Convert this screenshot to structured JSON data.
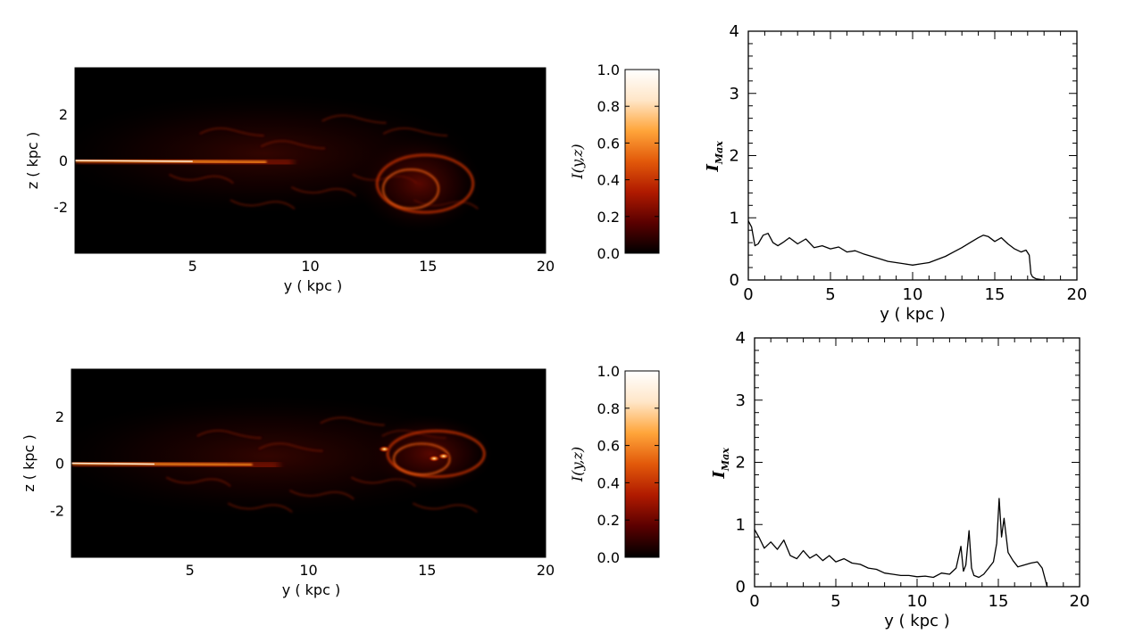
{
  "colors": {
    "background": "#ffffff",
    "axis": "#000000",
    "line": "#000000",
    "map_bg": "#000000"
  },
  "colorbar": {
    "colormap": "hot (black → dark red → orange → white)",
    "stops": [
      "#000000",
      "#5a0000",
      "#b01a00",
      "#e2590a",
      "#ffa53a",
      "#ffe6c8",
      "#ffffff"
    ],
    "ticks": [
      "0.0",
      "0.2",
      "0.4",
      "0.6",
      "0.8",
      "1.0"
    ],
    "label": "I(y,z)"
  },
  "chart_data": [
    {
      "type": "heatmap",
      "panel": "top-left",
      "xlabel": "y ( kpc )",
      "ylabel": "z ( kpc )",
      "xlim": [
        0,
        20
      ],
      "ylim": [
        -4,
        4
      ],
      "xticks": [
        "5",
        "10",
        "15",
        "20"
      ],
      "yticks": [
        "2",
        "0",
        "-2"
      ],
      "colorbar_label": "I(y,z)",
      "colorbar_range": [
        0,
        1
      ],
      "features": {
        "jet": {
          "y_start": 0,
          "y_end": 7,
          "z": 0.0,
          "intensity": 0.95,
          "peak_y": 3.5
        },
        "head": {
          "y_center": 14.5,
          "z_center": -1.0,
          "extent_y": [
            12,
            17.3
          ],
          "extent_z": [
            -3.2,
            1.0
          ]
        },
        "cocoon": {
          "y_range": [
            0,
            17
          ],
          "z_range": [
            -3,
            3
          ]
        }
      }
    },
    {
      "type": "line",
      "panel": "top-right",
      "xlabel": "y ( kpc )",
      "ylabel": "I_Max",
      "xlim": [
        0,
        20
      ],
      "ylim": [
        0,
        4
      ],
      "xticks": [
        "0",
        "5",
        "10",
        "15",
        "20"
      ],
      "yticks": [
        "0",
        "1",
        "2",
        "3",
        "4"
      ],
      "series": [
        {
          "x": [
            0,
            0.2,
            0.4,
            0.6,
            0.9,
            1.2,
            1.5,
            1.8,
            2.1,
            2.5,
            3.0,
            3.5,
            4.0,
            4.5,
            5.0,
            5.5,
            6.0,
            6.5,
            7.0,
            7.5,
            8.0,
            8.5,
            9.0,
            9.5,
            10.0,
            10.5,
            11.0,
            11.5,
            12.0,
            12.5,
            13.0,
            13.5,
            14.0,
            14.3,
            14.6,
            15.0,
            15.4,
            15.8,
            16.2,
            16.6,
            16.9,
            17.1,
            17.2,
            17.3,
            17.5,
            18.0
          ],
          "y": [
            0.95,
            0.85,
            0.55,
            0.58,
            0.72,
            0.75,
            0.6,
            0.55,
            0.6,
            0.68,
            0.58,
            0.66,
            0.52,
            0.55,
            0.5,
            0.53,
            0.45,
            0.47,
            0.42,
            0.38,
            0.34,
            0.3,
            0.28,
            0.26,
            0.24,
            0.26,
            0.28,
            0.33,
            0.38,
            0.45,
            0.52,
            0.6,
            0.68,
            0.72,
            0.7,
            0.62,
            0.68,
            0.58,
            0.5,
            0.45,
            0.48,
            0.4,
            0.1,
            0.05,
            0.02,
            0.0
          ]
        }
      ]
    },
    {
      "type": "heatmap",
      "panel": "bottom-left",
      "xlabel": "y ( kpc )",
      "ylabel": "z ( kpc )",
      "xlim": [
        0,
        20
      ],
      "ylim": [
        -4,
        4
      ],
      "xticks": [
        "5",
        "10",
        "15",
        "20"
      ],
      "yticks": [
        "2",
        "0",
        "-2"
      ],
      "colorbar_label": "I(y,z)",
      "colorbar_range": [
        0,
        1
      ],
      "features": {
        "jet": {
          "y_start": 0,
          "y_end": 6.5,
          "z": 0.0,
          "intensity": 0.95,
          "peak_y": 2.0
        },
        "head": {
          "y_center": 15.8,
          "z_center": 0.4,
          "extent_y": [
            12.5,
            17.8
          ],
          "extent_z": [
            -1.5,
            1.8
          ]
        },
        "hotspots": [
          {
            "y": 13.2,
            "z": 0.6
          },
          {
            "y": 15.3,
            "z": 0.2
          },
          {
            "y": 15.7,
            "z": 0.3
          }
        ]
      }
    },
    {
      "type": "line",
      "panel": "bottom-right",
      "xlabel": "y ( kpc )",
      "ylabel": "I_Max",
      "xlim": [
        0,
        20
      ],
      "ylim": [
        0,
        4
      ],
      "xticks": [
        "0",
        "5",
        "10",
        "15",
        "20"
      ],
      "yticks": [
        "0",
        "1",
        "2",
        "3",
        "4"
      ],
      "series": [
        {
          "x": [
            0,
            0.3,
            0.6,
            1.0,
            1.4,
            1.8,
            2.2,
            2.6,
            3.0,
            3.4,
            3.8,
            4.2,
            4.6,
            5.0,
            5.5,
            6.0,
            6.5,
            7.0,
            7.5,
            8.0,
            8.5,
            9.0,
            9.5,
            10.0,
            10.5,
            11.0,
            11.5,
            12.0,
            12.4,
            12.7,
            12.85,
            13.0,
            13.2,
            13.35,
            13.5,
            13.8,
            14.1,
            14.4,
            14.7,
            14.9,
            15.05,
            15.2,
            15.35,
            15.6,
            15.9,
            16.2,
            16.6,
            17.0,
            17.4,
            17.7,
            17.9,
            18.0
          ],
          "y": [
            0.92,
            0.78,
            0.62,
            0.72,
            0.6,
            0.75,
            0.5,
            0.45,
            0.58,
            0.46,
            0.52,
            0.42,
            0.5,
            0.4,
            0.45,
            0.38,
            0.36,
            0.3,
            0.28,
            0.22,
            0.2,
            0.18,
            0.18,
            0.16,
            0.17,
            0.15,
            0.22,
            0.2,
            0.3,
            0.65,
            0.25,
            0.35,
            0.9,
            0.3,
            0.18,
            0.15,
            0.2,
            0.3,
            0.4,
            0.7,
            1.42,
            0.8,
            1.1,
            0.55,
            0.42,
            0.32,
            0.35,
            0.38,
            0.4,
            0.3,
            0.1,
            0.0
          ]
        }
      ]
    }
  ]
}
